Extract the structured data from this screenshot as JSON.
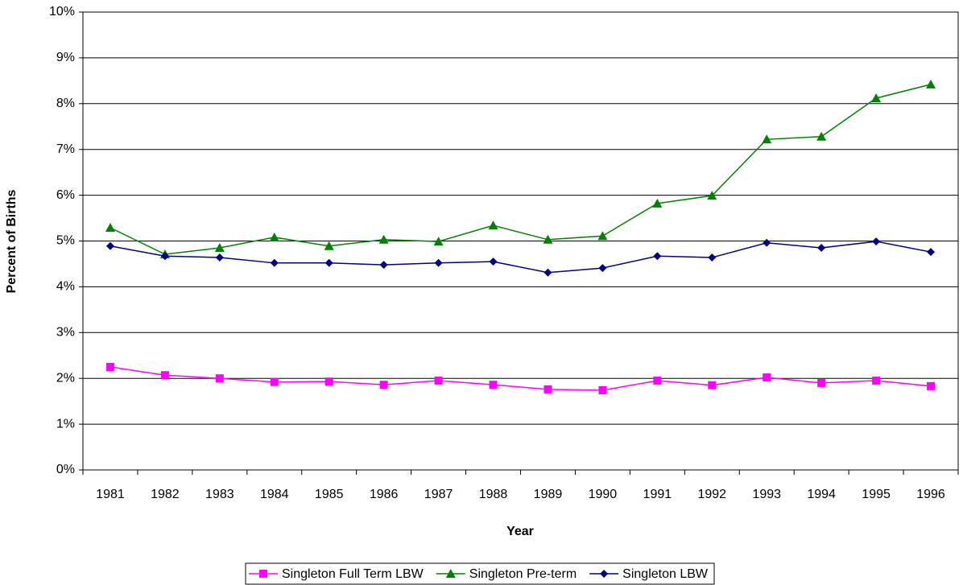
{
  "chart_data": {
    "type": "line",
    "x_label": "Year",
    "y_label": "Percent of Births",
    "categories": [
      "1981",
      "1982",
      "1983",
      "1984",
      "1985",
      "1986",
      "1987",
      "1988",
      "1989",
      "1990",
      "1991",
      "1992",
      "1993",
      "1994",
      "1995",
      "1996"
    ],
    "series": [
      {
        "name": "Singleton Full Term LBW",
        "color": "#ff00ff",
        "marker": "square",
        "values": [
          2.25,
          2.07,
          2.0,
          1.92,
          1.93,
          1.86,
          1.95,
          1.86,
          1.76,
          1.74,
          1.95,
          1.85,
          2.02,
          1.9,
          1.95,
          1.83
        ]
      },
      {
        "name": "Singleton Pre-term",
        "color": "#008000",
        "marker": "triangle",
        "values": [
          5.29,
          4.71,
          4.85,
          5.08,
          4.89,
          5.03,
          4.99,
          5.34,
          5.03,
          5.11,
          5.82,
          5.99,
          7.22,
          7.28,
          8.12,
          8.42
        ]
      },
      {
        "name": "Singleton LBW",
        "color": "#000080",
        "marker": "diamond",
        "values": [
          4.89,
          4.67,
          4.64,
          4.52,
          4.52,
          4.48,
          4.52,
          4.55,
          4.31,
          4.41,
          4.67,
          4.64,
          4.96,
          4.85,
          4.99,
          4.76
        ]
      }
    ],
    "ylim": [
      0,
      10
    ],
    "yticks": [
      {
        "value": 0,
        "label": "0%"
      },
      {
        "value": 1,
        "label": "1%"
      },
      {
        "value": 2,
        "label": "2%"
      },
      {
        "value": 3,
        "label": "3%"
      },
      {
        "value": 4,
        "label": "4%"
      },
      {
        "value": 5,
        "label": "5%"
      },
      {
        "value": 6,
        "label": "6%"
      },
      {
        "value": 7,
        "label": "7%"
      },
      {
        "value": 8,
        "label": "8%"
      },
      {
        "value": 9,
        "label": "9%"
      },
      {
        "value": 10,
        "label": "10%"
      }
    ],
    "grid": true,
    "legend": "bottom"
  }
}
